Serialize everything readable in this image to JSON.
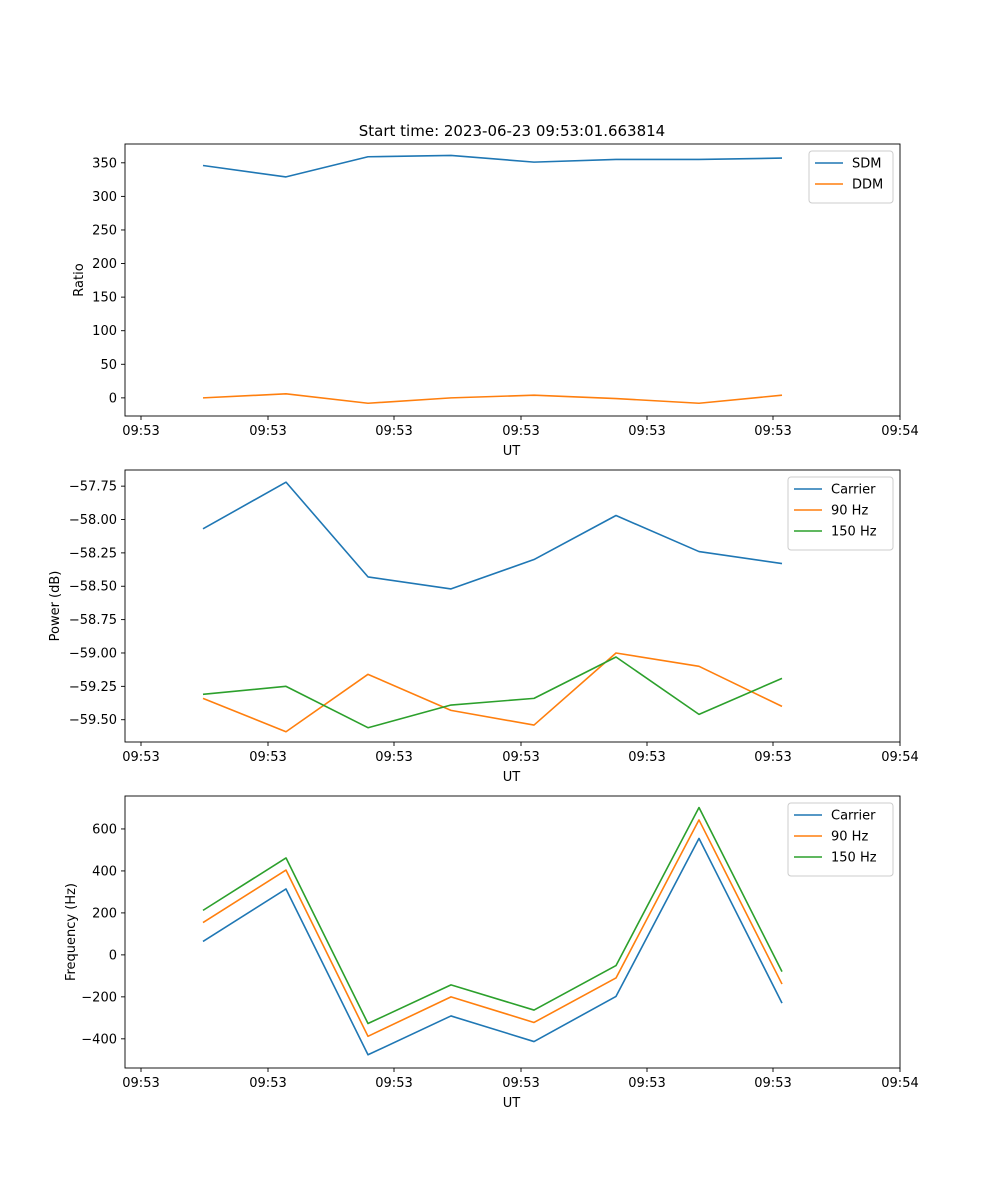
{
  "figure_title": "Start time: 2023-06-23 09:53:01.663814",
  "chart_data": [
    {
      "type": "line",
      "xlabel": "UT",
      "ylabel": "Ratio",
      "xticks": [
        "09:53",
        "09:53",
        "09:53",
        "09:53",
        "09:53",
        "09:53",
        "09:54"
      ],
      "yticks": [
        "0",
        "50",
        "100",
        "150",
        "200",
        "250",
        "300",
        "350"
      ],
      "ytick_values": [
        0,
        50,
        100,
        150,
        200,
        250,
        300,
        350
      ],
      "ylim": [
        -27,
        378
      ],
      "legend_position": "upper right",
      "series": [
        {
          "name": "SDM",
          "color": "#1f77b4",
          "values": [
            346,
            329,
            359,
            361,
            351,
            355,
            355,
            357
          ]
        },
        {
          "name": "DDM",
          "color": "#ff7f0e",
          "values": [
            0,
            6,
            -8,
            0,
            4,
            -1,
            -8,
            4
          ]
        }
      ]
    },
    {
      "type": "line",
      "xlabel": "UT",
      "ylabel": "Power (dB)",
      "xticks": [
        "09:53",
        "09:53",
        "09:53",
        "09:53",
        "09:53",
        "09:53",
        "09:54"
      ],
      "yticks": [
        "−57.75",
        "−58.00",
        "−58.25",
        "−58.50",
        "−58.75",
        "−59.00",
        "−59.25",
        "−59.50"
      ],
      "ytick_values": [
        -57.75,
        -58.0,
        -58.25,
        -58.5,
        -58.75,
        -59.0,
        -59.25,
        -59.5
      ],
      "ylim": [
        -59.667,
        -57.629
      ],
      "legend_position": "upper right",
      "series": [
        {
          "name": "Carrier",
          "color": "#1f77b4",
          "values": [
            -58.07,
            -57.72,
            -58.43,
            -58.52,
            -58.3,
            -57.97,
            -58.24,
            -58.33
          ]
        },
        {
          "name": "90 Hz",
          "color": "#ff7f0e",
          "values": [
            -59.34,
            -59.59,
            -59.16,
            -59.43,
            -59.54,
            -59.0,
            -59.1,
            -59.4
          ]
        },
        {
          "name": "150 Hz",
          "color": "#2ca02c",
          "values": [
            -59.31,
            -59.25,
            -59.56,
            -59.39,
            -59.34,
            -59.03,
            -59.46,
            -59.19
          ]
        }
      ]
    },
    {
      "type": "line",
      "xlabel": "UT",
      "ylabel": "Frequency (Hz)",
      "xticks": [
        "09:53",
        "09:53",
        "09:53",
        "09:53",
        "09:53",
        "09:53",
        "09:54"
      ],
      "yticks": [
        "−400",
        "−200",
        "0",
        "200",
        "400",
        "600"
      ],
      "ytick_values": [
        -400,
        -200,
        0,
        200,
        400,
        600
      ],
      "ylim": [
        -539,
        757
      ],
      "legend_position": "upper right",
      "series": [
        {
          "name": "Carrier",
          "color": "#1f77b4",
          "values": [
            64,
            314,
            -476,
            -291,
            -413,
            -198,
            555,
            -230
          ]
        },
        {
          "name": "90 Hz",
          "color": "#ff7f0e",
          "values": [
            154,
            404,
            -388,
            -200,
            -322,
            -110,
            643,
            -139
          ]
        },
        {
          "name": "150 Hz",
          "color": "#2ca02c",
          "values": [
            212,
            462,
            -327,
            -143,
            -263,
            -51,
            702,
            -80
          ]
        }
      ]
    }
  ]
}
